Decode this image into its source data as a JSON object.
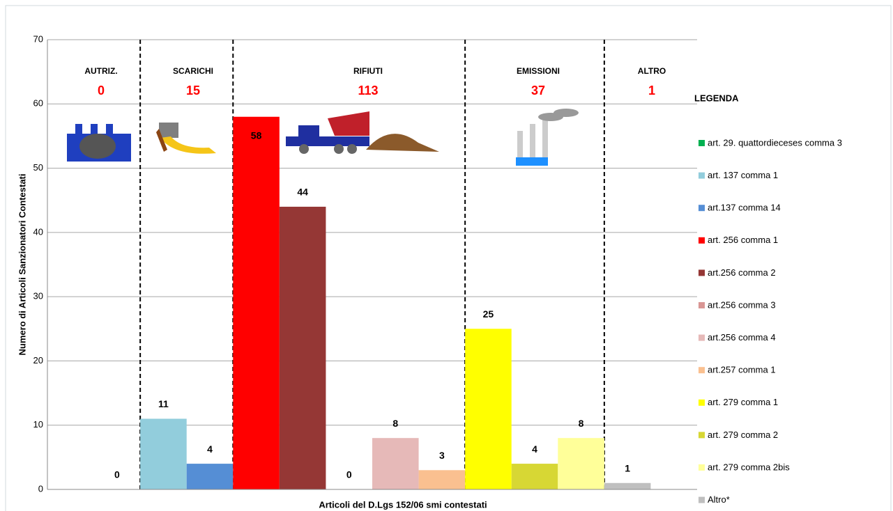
{
  "chart_data": {
    "type": "bar",
    "y_label": "Numero di Articoli  Sanzionatori Contestati",
    "x_label": "Articoli del D.Lgs 152/06 smi contestati",
    "legend_title": "LEGENDA",
    "ylim": [
      0,
      70
    ],
    "yticks": [
      0,
      10,
      20,
      30,
      40,
      50,
      60,
      70
    ],
    "grid": true,
    "groups": [
      {
        "label": "AUTRIZ.",
        "total": 0
      },
      {
        "label": "SCARICHI",
        "total": 15
      },
      {
        "label": "RIFIUTI",
        "total": 113
      },
      {
        "label": "EMISSIONI",
        "total": 37
      },
      {
        "label": "ALTRO",
        "total": 1
      }
    ],
    "series": [
      {
        "name": "art. 29. quattordieceses comma 3",
        "color": "#00b050",
        "values": [
          0
        ]
      },
      {
        "name": "art. 137 comma 1",
        "color": "#92cddc",
        "values": [
          11
        ]
      },
      {
        "name": "art.137 comma 14",
        "color": "#558ed5",
        "values": [
          4
        ]
      },
      {
        "name": "art. 256 comma 1",
        "color": "#ff0000",
        "values": [
          58
        ]
      },
      {
        "name": "art.256 comma 2",
        "color": "#953735",
        "values": [
          44
        ]
      },
      {
        "name": "art.256 comma 3",
        "color": "#d99694",
        "values": [
          0
        ]
      },
      {
        "name": "art.256 comma 4",
        "color": "#e6b9b8",
        "values": [
          8
        ]
      },
      {
        "name": "art.257 comma 1",
        "color": "#fac090",
        "values": [
          3
        ]
      },
      {
        "name": "art. 279 comma 1",
        "color": "#ffff00",
        "values": [
          25
        ]
      },
      {
        "name": "art. 279 comma 2",
        "color": "#d7d734",
        "values": [
          4
        ]
      },
      {
        "name": "art. 279 comma 2bis",
        "color": "#ffff99",
        "values": [
          8
        ]
      },
      {
        "name": "Altro*",
        "color": "#bfbfbf",
        "values": [
          1
        ]
      }
    ]
  }
}
